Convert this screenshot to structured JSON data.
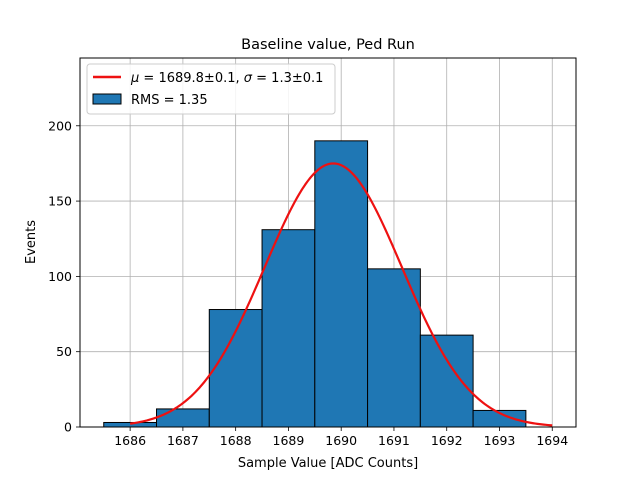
{
  "chart_data": {
    "type": "bar",
    "title": "Baseline value, Ped Run",
    "xlabel": "Sample Value [ADC Counts]",
    "ylabel": "Events",
    "xlim": [
      1685.05,
      1694.45
    ],
    "ylim": [
      0,
      245
    ],
    "grid": true,
    "xticks": [
      1686,
      1687,
      1688,
      1689,
      1690,
      1691,
      1692,
      1693,
      1694
    ],
    "yticks": [
      0,
      50,
      100,
      150,
      200
    ],
    "bin_width": 1,
    "bin_centers": [
      1686,
      1687,
      1688,
      1689,
      1690,
      1691,
      1692,
      1693
    ],
    "values": [
      3,
      12,
      78,
      131,
      190,
      105,
      61,
      11
    ],
    "bar_color": "#1f77b4",
    "bar_edge_color": "#000000",
    "fit": {
      "type": "gaussian",
      "mu": 1689.85,
      "sigma": 1.3,
      "amplitude": 175,
      "x_range": [
        1686,
        1694
      ],
      "color": "#ee1111"
    },
    "legend": {
      "placement": "top-left",
      "entries": [
        {
          "kind": "line",
          "mu_label": "μ",
          "mu_text": " = 1689.8±0.1, ",
          "sigma_label": "σ",
          "sigma_text": " = 1.3±0.1"
        },
        {
          "kind": "patch",
          "label": "RMS = 1.35"
        }
      ]
    }
  }
}
